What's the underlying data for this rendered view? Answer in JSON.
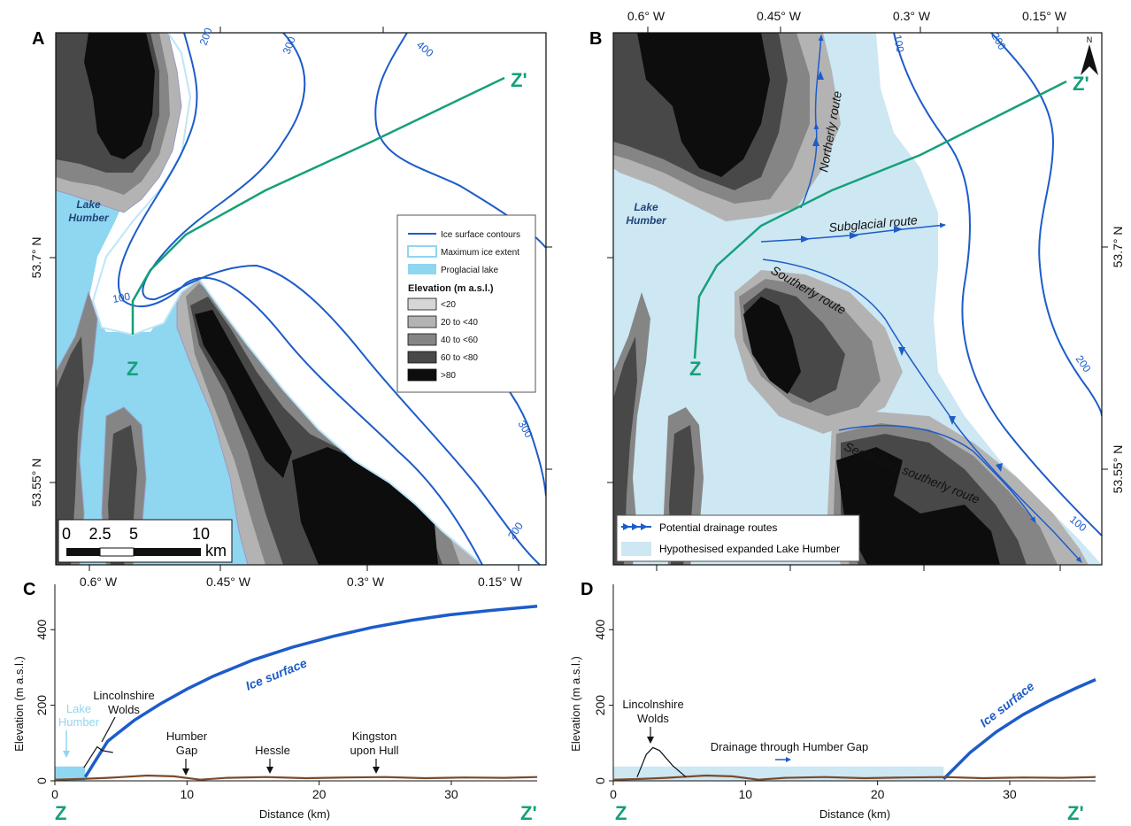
{
  "panels": {
    "a": "A",
    "b": "B",
    "c": "C",
    "d": "D"
  },
  "map": {
    "lon_ticks": [
      "0.6° W",
      "0.45° W",
      "0.3° W",
      "0.15° W"
    ],
    "lat_ticks": [
      "53.7° N",
      "53.55° N"
    ],
    "lake_label": [
      "Lake",
      "Humber"
    ],
    "contour_labels_a": [
      "200",
      "300",
      "400",
      "100",
      "300",
      "200"
    ],
    "contour_labels_b": [
      "100",
      "200",
      "200",
      "100"
    ],
    "z_label": "Z",
    "zprime_label": "Z'",
    "north_label": "N",
    "colors": {
      "lake": "#8fd6f0",
      "expanded_lake": "#cde7f3",
      "contour": "#1d5cc9",
      "transect": "#15a07a",
      "elev_lt20": "#d6d6d6",
      "elev_20_40": "#b3b3b3",
      "elev_40_60": "#858585",
      "elev_60_80": "#484848",
      "elev_gt80": "#0d0d0d"
    },
    "scale_bar": {
      "ticks": [
        "0",
        "2.5",
        "5",
        "10"
      ],
      "unit": "km"
    }
  },
  "legend_a": {
    "items": [
      "Ice surface contours",
      "Maximum ice extent",
      "Proglacial lake"
    ],
    "elevation_title": "Elevation (m a.s.l.)",
    "classes": [
      "<20",
      "20 to <40",
      "40 to <60",
      "60 to <80",
      ">80"
    ]
  },
  "legend_b": {
    "items": [
      "Potential drainage routes",
      "Hypothesised expanded Lake Humber"
    ]
  },
  "routes": {
    "northerly": "Northerly route",
    "subglacial": "Subglacial route",
    "southerly": "Southerly route",
    "secondary": "Secondary southerly route"
  },
  "chart_data": [
    {
      "type": "line",
      "panel": "C",
      "xlabel": "Distance (km)",
      "ylabel": "Elevation (m a.s.l.)",
      "xlim": [
        0,
        36.5
      ],
      "ylim": [
        0,
        520
      ],
      "xticks": [
        0,
        10,
        20,
        30
      ],
      "yticks": [
        0,
        200,
        400
      ],
      "series": [
        {
          "name": "Ice surface",
          "x": [
            2.3,
            4,
            6,
            8,
            10,
            12,
            15,
            18,
            21,
            24,
            27,
            30,
            33,
            36.5
          ],
          "y": [
            10,
            105,
            160,
            204,
            243,
            277,
            320,
            354,
            382,
            406,
            425,
            440,
            451,
            462
          ]
        },
        {
          "x": [
            0,
            2,
            4,
            7,
            9,
            11,
            13,
            16,
            19,
            22,
            25,
            28,
            31,
            34,
            36.5
          ],
          "y": [
            3,
            5,
            8,
            14,
            12,
            3,
            8,
            10,
            7,
            9,
            10,
            7,
            9,
            8,
            10
          ]
        },
        {
          "x": [
            2.2,
            3.2,
            3.6,
            4.4
          ],
          "y": [
            35,
            90,
            80,
            75
          ]
        }
      ],
      "lake": {
        "x": [
          0,
          2.3
        ],
        "level": 38
      },
      "annotations": {
        "lake": [
          "Lake",
          "Humber"
        ],
        "wolds": [
          "Lincolnshire",
          "Wolds"
        ],
        "gap": [
          "Humber",
          "Gap"
        ],
        "hessle": "Hessle",
        "kingston": [
          "Kingston",
          "upon Hull"
        ]
      },
      "z_start": "Z",
      "z_end": "Z'"
    },
    {
      "type": "line",
      "panel": "D",
      "xlabel": "Distance (km)",
      "ylabel": "Elevation (m a.s.l.)",
      "xlim": [
        0,
        36.5
      ],
      "ylim": [
        0,
        520
      ],
      "xticks": [
        0,
        10,
        20,
        30
      ],
      "yticks": [
        0,
        200,
        400
      ],
      "series": [
        {
          "name": "Ice surface",
          "x": [
            25,
            27,
            29,
            31,
            33,
            35,
            36.5
          ],
          "y": [
            5,
            75,
            130,
            175,
            212,
            245,
            268
          ]
        },
        {
          "x": [
            0,
            2,
            4,
            7,
            9,
            11,
            13,
            16,
            19,
            22,
            25,
            28,
            31,
            34,
            36.5
          ],
          "y": [
            3,
            5,
            8,
            14,
            12,
            3,
            8,
            10,
            7,
            9,
            10,
            7,
            9,
            8,
            10
          ]
        },
        {
          "x": [
            1.8,
            2.5,
            3,
            3.5,
            4.5,
            5.5
          ],
          "y": [
            10,
            70,
            88,
            80,
            40,
            10
          ]
        }
      ],
      "lake": {
        "x": [
          0,
          25
        ],
        "level": 38
      },
      "annotations": {
        "wolds": [
          "Lincolnshire",
          "Wolds"
        ],
        "drainage": "Drainage through Humber Gap"
      },
      "z_start": "Z",
      "z_end": "Z'"
    }
  ]
}
